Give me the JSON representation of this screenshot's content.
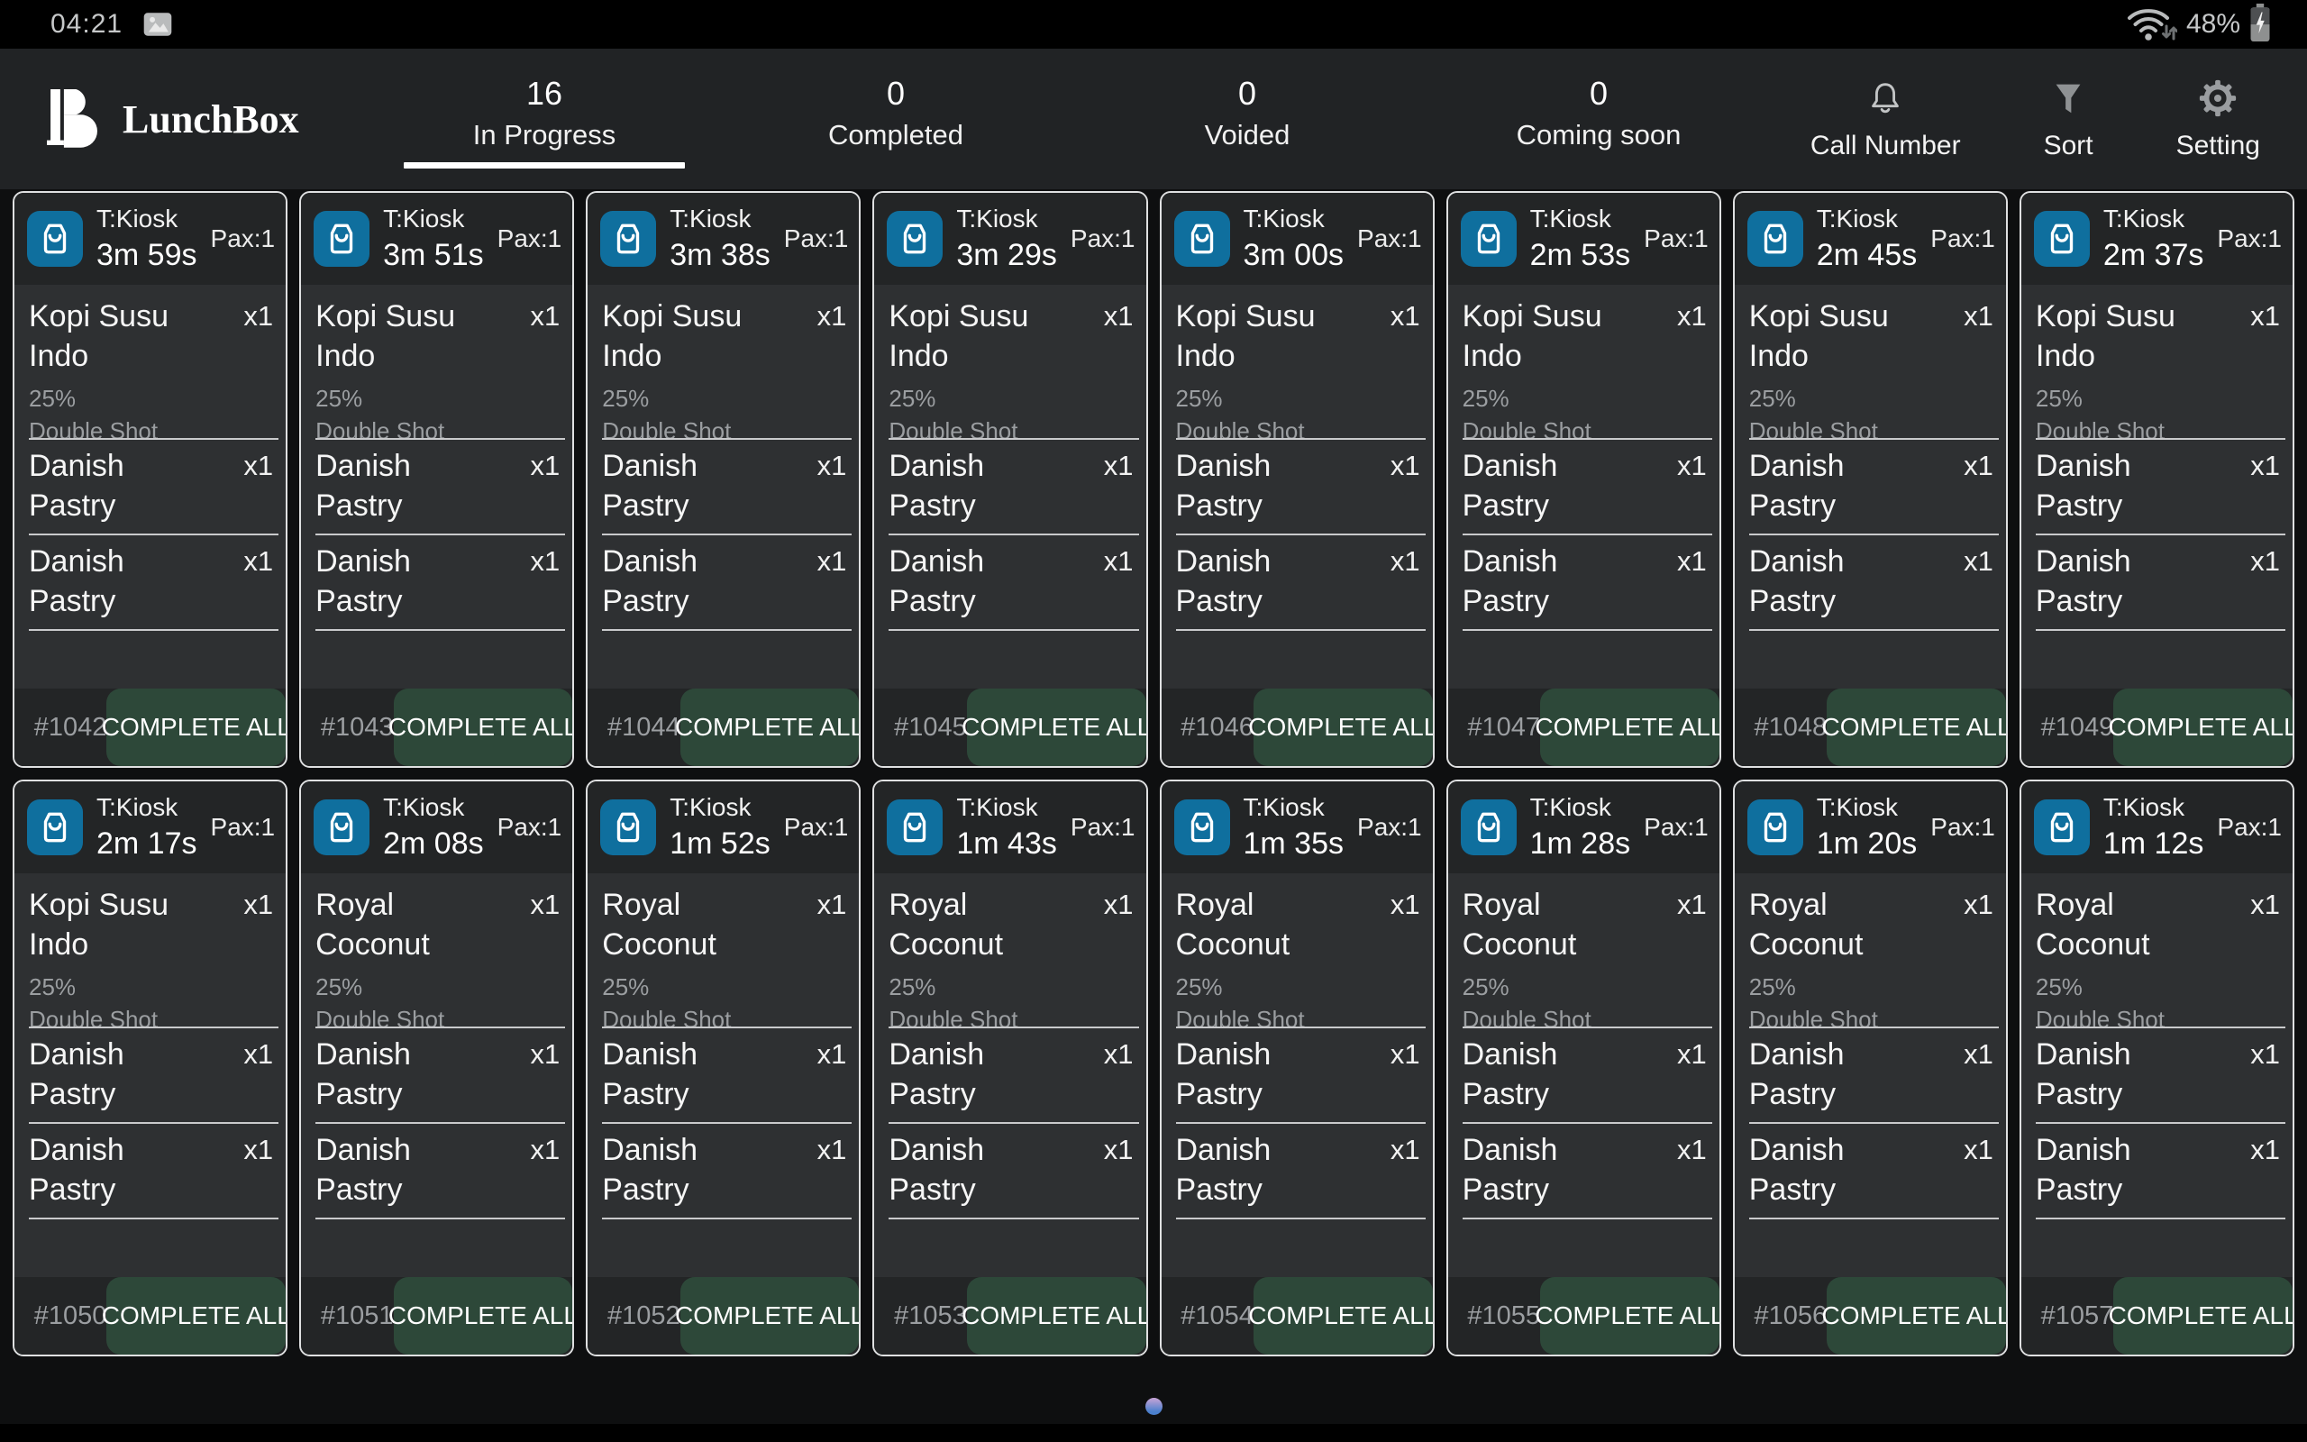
{
  "status_bar": {
    "time": "04:21",
    "battery_percent": "48%"
  },
  "icons": {
    "gallery": "image-icon",
    "wifi": "wifi-icon",
    "battery": "battery-charging-icon",
    "bell": "bell-icon",
    "funnel": "funnel-icon",
    "gear": "gear-icon",
    "kiosk": "kiosk-bag-icon",
    "logo": "lunchbox-monogram"
  },
  "colors": {
    "accent_blue": "#0F6F9E",
    "complete_green": "#2D4839",
    "card_border": "#DFE0E1",
    "card_body_bg": "#2E3032",
    "card_header_bg": "#232526",
    "header_bg": "#212325"
  },
  "header": {
    "logo_text": "LunchBox",
    "tabs": [
      {
        "count": "16",
        "label": "In Progress",
        "active": true
      },
      {
        "count": "0",
        "label": "Completed",
        "active": false
      },
      {
        "count": "0",
        "label": "Voided",
        "active": false
      },
      {
        "count": "0",
        "label": "Coming soon",
        "active": false
      }
    ],
    "actions": [
      {
        "label": "Call Number",
        "icon": "bell-icon"
      },
      {
        "label": "Sort",
        "icon": "funnel-icon"
      },
      {
        "label": "Setting",
        "icon": "gear-icon"
      }
    ]
  },
  "card": {
    "complete_label": "COMPLETE ALL"
  },
  "pagination": {
    "dots": 1,
    "active_dot": 0
  },
  "orders": [
    {
      "source": "T:Kiosk",
      "timer": "3m 59s",
      "pax": "Pax:1",
      "number": "#1042",
      "items": [
        {
          "name": "Kopi Susu Indo",
          "qty": "x1",
          "modifiers": [
            "25%",
            "Double Shot"
          ]
        },
        {
          "name": "Danish Pastry",
          "qty": "x1",
          "modifiers": []
        },
        {
          "name": "Danish Pastry",
          "qty": "x1",
          "modifiers": []
        }
      ]
    },
    {
      "source": "T:Kiosk",
      "timer": "3m 51s",
      "pax": "Pax:1",
      "number": "#1043",
      "items": [
        {
          "name": "Kopi Susu Indo",
          "qty": "x1",
          "modifiers": [
            "25%",
            "Double Shot"
          ]
        },
        {
          "name": "Danish Pastry",
          "qty": "x1",
          "modifiers": []
        },
        {
          "name": "Danish Pastry",
          "qty": "x1",
          "modifiers": []
        }
      ]
    },
    {
      "source": "T:Kiosk",
      "timer": "3m 38s",
      "pax": "Pax:1",
      "number": "#1044",
      "items": [
        {
          "name": "Kopi Susu Indo",
          "qty": "x1",
          "modifiers": [
            "25%",
            "Double Shot"
          ]
        },
        {
          "name": "Danish Pastry",
          "qty": "x1",
          "modifiers": []
        },
        {
          "name": "Danish Pastry",
          "qty": "x1",
          "modifiers": []
        }
      ]
    },
    {
      "source": "T:Kiosk",
      "timer": "3m 29s",
      "pax": "Pax:1",
      "number": "#1045",
      "items": [
        {
          "name": "Kopi Susu Indo",
          "qty": "x1",
          "modifiers": [
            "25%",
            "Double Shot"
          ]
        },
        {
          "name": "Danish Pastry",
          "qty": "x1",
          "modifiers": []
        },
        {
          "name": "Danish Pastry",
          "qty": "x1",
          "modifiers": []
        }
      ]
    },
    {
      "source": "T:Kiosk",
      "timer": "3m 00s",
      "pax": "Pax:1",
      "number": "#1046",
      "items": [
        {
          "name": "Kopi Susu Indo",
          "qty": "x1",
          "modifiers": [
            "25%",
            "Double Shot"
          ]
        },
        {
          "name": "Danish Pastry",
          "qty": "x1",
          "modifiers": []
        },
        {
          "name": "Danish Pastry",
          "qty": "x1",
          "modifiers": []
        }
      ]
    },
    {
      "source": "T:Kiosk",
      "timer": "2m 53s",
      "pax": "Pax:1",
      "number": "#1047",
      "items": [
        {
          "name": "Kopi Susu Indo",
          "qty": "x1",
          "modifiers": [
            "25%",
            "Double Shot"
          ]
        },
        {
          "name": "Danish Pastry",
          "qty": "x1",
          "modifiers": []
        },
        {
          "name": "Danish Pastry",
          "qty": "x1",
          "modifiers": []
        }
      ]
    },
    {
      "source": "T:Kiosk",
      "timer": "2m 45s",
      "pax": "Pax:1",
      "number": "#1048",
      "items": [
        {
          "name": "Kopi Susu Indo",
          "qty": "x1",
          "modifiers": [
            "25%",
            "Double Shot"
          ]
        },
        {
          "name": "Danish Pastry",
          "qty": "x1",
          "modifiers": []
        },
        {
          "name": "Danish Pastry",
          "qty": "x1",
          "modifiers": []
        }
      ]
    },
    {
      "source": "T:Kiosk",
      "timer": "2m 37s",
      "pax": "Pax:1",
      "number": "#1049",
      "items": [
        {
          "name": "Kopi Susu Indo",
          "qty": "x1",
          "modifiers": [
            "25%",
            "Double Shot"
          ]
        },
        {
          "name": "Danish Pastry",
          "qty": "x1",
          "modifiers": []
        },
        {
          "name": "Danish Pastry",
          "qty": "x1",
          "modifiers": []
        }
      ]
    },
    {
      "source": "T:Kiosk",
      "timer": "2m 17s",
      "pax": "Pax:1",
      "number": "#1050",
      "items": [
        {
          "name": "Kopi Susu Indo",
          "qty": "x1",
          "modifiers": [
            "25%",
            "Double Shot"
          ]
        },
        {
          "name": "Danish Pastry",
          "qty": "x1",
          "modifiers": []
        },
        {
          "name": "Danish Pastry",
          "qty": "x1",
          "modifiers": []
        }
      ]
    },
    {
      "source": "T:Kiosk",
      "timer": "2m 08s",
      "pax": "Pax:1",
      "number": "#1051",
      "items": [
        {
          "name": "Royal Coconut",
          "qty": "x1",
          "modifiers": [
            "25%",
            "Double Shot"
          ]
        },
        {
          "name": "Danish Pastry",
          "qty": "x1",
          "modifiers": []
        },
        {
          "name": "Danish Pastry",
          "qty": "x1",
          "modifiers": []
        }
      ]
    },
    {
      "source": "T:Kiosk",
      "timer": "1m 52s",
      "pax": "Pax:1",
      "number": "#1052",
      "items": [
        {
          "name": "Royal Coconut",
          "qty": "x1",
          "modifiers": [
            "25%",
            "Double Shot"
          ]
        },
        {
          "name": "Danish Pastry",
          "qty": "x1",
          "modifiers": []
        },
        {
          "name": "Danish Pastry",
          "qty": "x1",
          "modifiers": []
        }
      ]
    },
    {
      "source": "T:Kiosk",
      "timer": "1m 43s",
      "pax": "Pax:1",
      "number": "#1053",
      "items": [
        {
          "name": "Royal Coconut",
          "qty": "x1",
          "modifiers": [
            "25%",
            "Double Shot"
          ]
        },
        {
          "name": "Danish Pastry",
          "qty": "x1",
          "modifiers": []
        },
        {
          "name": "Danish Pastry",
          "qty": "x1",
          "modifiers": []
        }
      ]
    },
    {
      "source": "T:Kiosk",
      "timer": "1m 35s",
      "pax": "Pax:1",
      "number": "#1054",
      "items": [
        {
          "name": "Royal Coconut",
          "qty": "x1",
          "modifiers": [
            "25%",
            "Double Shot"
          ]
        },
        {
          "name": "Danish Pastry",
          "qty": "x1",
          "modifiers": []
        },
        {
          "name": "Danish Pastry",
          "qty": "x1",
          "modifiers": []
        }
      ]
    },
    {
      "source": "T:Kiosk",
      "timer": "1m 28s",
      "pax": "Pax:1",
      "number": "#1055",
      "items": [
        {
          "name": "Royal Coconut",
          "qty": "x1",
          "modifiers": [
            "25%",
            "Double Shot"
          ]
        },
        {
          "name": "Danish Pastry",
          "qty": "x1",
          "modifiers": []
        },
        {
          "name": "Danish Pastry",
          "qty": "x1",
          "modifiers": []
        }
      ]
    },
    {
      "source": "T:Kiosk",
      "timer": "1m 20s",
      "pax": "Pax:1",
      "number": "#1056",
      "items": [
        {
          "name": "Royal Coconut",
          "qty": "x1",
          "modifiers": [
            "25%",
            "Double Shot"
          ]
        },
        {
          "name": "Danish Pastry",
          "qty": "x1",
          "modifiers": []
        },
        {
          "name": "Danish Pastry",
          "qty": "x1",
          "modifiers": []
        }
      ]
    },
    {
      "source": "T:Kiosk",
      "timer": "1m 12s",
      "pax": "Pax:1",
      "number": "#1057",
      "items": [
        {
          "name": "Royal Coconut",
          "qty": "x1",
          "modifiers": [
            "25%",
            "Double Shot"
          ]
        },
        {
          "name": "Danish Pastry",
          "qty": "x1",
          "modifiers": []
        },
        {
          "name": "Danish Pastry",
          "qty": "x1",
          "modifiers": []
        }
      ]
    }
  ]
}
